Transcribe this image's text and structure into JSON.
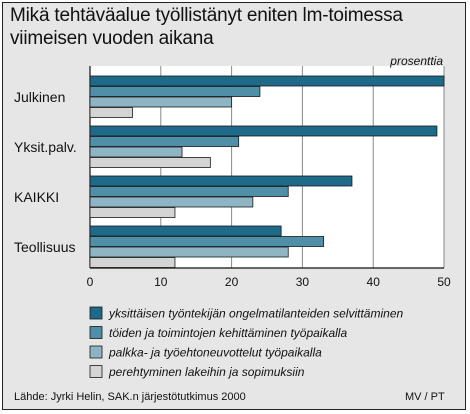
{
  "title_lines": [
    "Mikä tehtäväalue työllistänyt eniten lm-toimessa",
    "viimeisen vuoden aikana"
  ],
  "source": "Lähde: Jyrki Helin, SAK.n järjestötutkimus 2000",
  "credit": "MV / PT",
  "colors": {
    "background": "#e6e6e6",
    "plot_background": "#ffffff",
    "series": [
      "#1f6a88",
      "#4f8fa8",
      "#8fb4c4",
      "#d4d4d4"
    ]
  },
  "chart_data": {
    "type": "bar",
    "orientation": "horizontal",
    "title": "Mikä tehtäväalue työllistänyt eniten lm-toimessa viimeisen vuoden aikana",
    "unit_label": "prosenttia",
    "categories": [
      "Julkinen",
      "Yksit.palv.",
      "KAIKKI",
      "Teollisuus"
    ],
    "series": [
      {
        "name": "yksittäisen työntekijän ongelmatilanteiden selvittäminen",
        "values": [
          50,
          49,
          37,
          27
        ]
      },
      {
        "name": "töiden ja toimintojen kehittäminen työpaikalla",
        "values": [
          24,
          21,
          28,
          33
        ]
      },
      {
        "name": "palkka- ja työehtoneuvottelut työpaikalla",
        "values": [
          20,
          13,
          23,
          28
        ]
      },
      {
        "name": "perehtyminen lakeihin ja sopimuksiin",
        "values": [
          6,
          17,
          12,
          12
        ]
      }
    ],
    "xlim": [
      0,
      50
    ],
    "xticks": [
      0,
      10,
      20,
      30,
      40,
      50
    ],
    "grid": true,
    "legend_position": "bottom"
  }
}
